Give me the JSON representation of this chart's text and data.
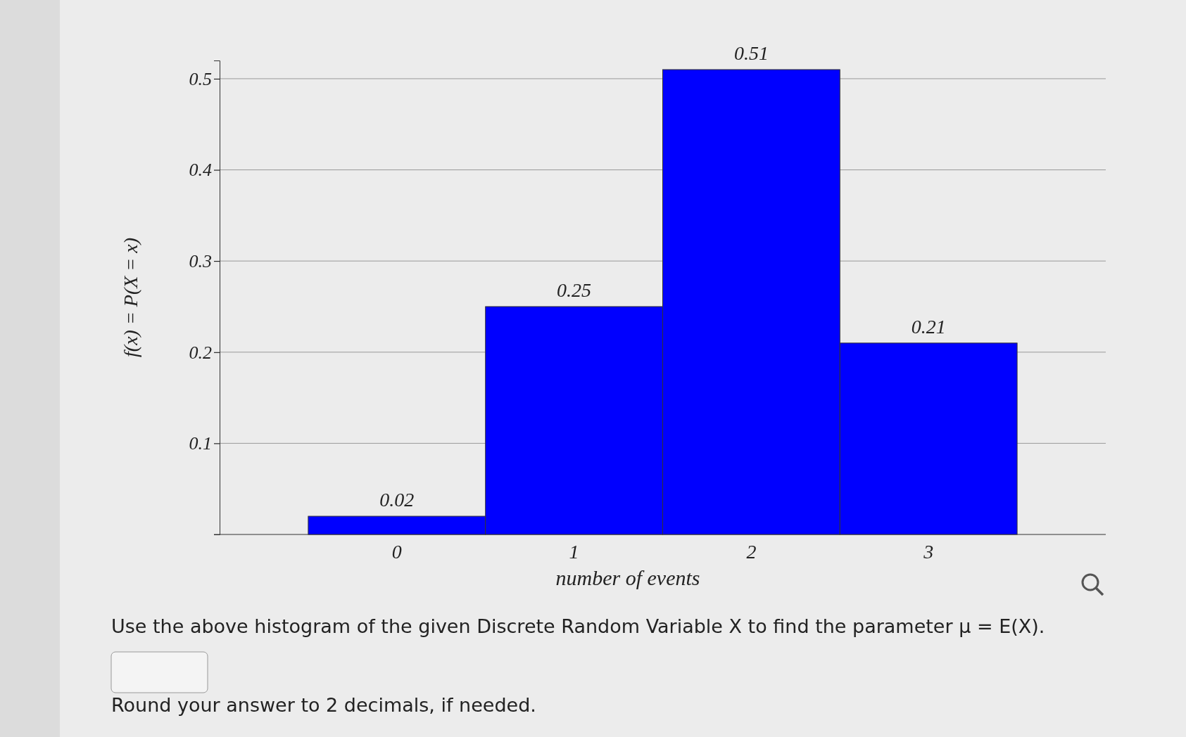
{
  "chart_data": {
    "type": "bar",
    "xlabel": "number of events",
    "ylabel": "f(x) = P(X = x)",
    "categories": [
      "0",
      "1",
      "2",
      "3"
    ],
    "values": [
      0.02,
      0.25,
      0.51,
      0.21
    ],
    "color": "#0000ff",
    "ylim": [
      0,
      0.52
    ],
    "yticks": [
      0.1,
      0.2,
      0.3,
      0.4,
      0.5
    ],
    "grid": "y",
    "data_labels": true,
    "annotations": [
      "Use the above histogram of the given Discrete Random Variable X to find the parameter μ = E(X).",
      "Round your answer to 2 decimals, if needed."
    ]
  }
}
